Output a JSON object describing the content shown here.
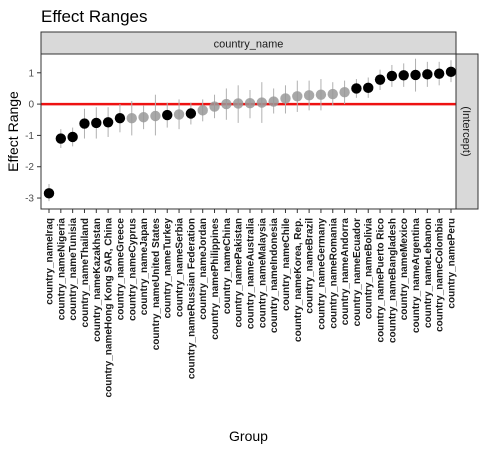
{
  "chart_data": {
    "type": "scatter",
    "title": "Effect Ranges",
    "facet_top_label": "country_name",
    "facet_right_label": "(Intercept)",
    "xlabel": "Group",
    "ylabel": "Effect Range",
    "ylim": [
      -3.35,
      1.6
    ],
    "yticks": [
      -3,
      -2,
      -1,
      0,
      1
    ],
    "reference_line": {
      "y": 0,
      "color": "#ee1111"
    },
    "grid": false,
    "colors": {
      "significant": "#000000",
      "non_significant": "#999999",
      "error_bar": "#b0b0b0",
      "strip": "#d9d9d9"
    },
    "points": [
      {
        "label": "country_nameIraq",
        "value": -2.85,
        "lower": -3.1,
        "upper": -2.55,
        "significant": true
      },
      {
        "label": "country_nameNigeria",
        "value": -1.1,
        "lower": -1.4,
        "upper": -0.8,
        "significant": true
      },
      {
        "label": "country_nameTunisia",
        "value": -1.05,
        "lower": -1.35,
        "upper": -0.75,
        "significant": true
      },
      {
        "label": "country_nameThailand",
        "value": -0.62,
        "lower": -1.1,
        "upper": -0.15,
        "significant": true
      },
      {
        "label": "country_nameKazakhstan",
        "value": -0.6,
        "lower": -1.1,
        "upper": -0.1,
        "significant": true
      },
      {
        "label": "country_nameHong Kong SAR, China",
        "value": -0.58,
        "lower": -1.05,
        "upper": -0.1,
        "significant": true
      },
      {
        "label": "country_nameGreece",
        "value": -0.45,
        "lower": -0.9,
        "upper": 0.0,
        "significant": true
      },
      {
        "label": "country_nameCyprus",
        "value": -0.45,
        "lower": -1.0,
        "upper": 0.1,
        "significant": false
      },
      {
        "label": "country_nameJapan",
        "value": -0.42,
        "lower": -0.8,
        "upper": -0.05,
        "significant": false
      },
      {
        "label": "country_nameUnited States",
        "value": -0.38,
        "lower": -1.0,
        "upper": 0.3,
        "significant": false
      },
      {
        "label": "country_nameTurkey",
        "value": -0.35,
        "lower": -0.75,
        "upper": 0.05,
        "significant": true
      },
      {
        "label": "country_nameSerbia",
        "value": -0.33,
        "lower": -0.8,
        "upper": 0.15,
        "significant": false
      },
      {
        "label": "country_nameRussian Federation",
        "value": -0.3,
        "lower": -0.65,
        "upper": 0.05,
        "significant": true
      },
      {
        "label": "country_nameJordan",
        "value": -0.2,
        "lower": -0.55,
        "upper": 0.15,
        "significant": false
      },
      {
        "label": "country_namePhilippines",
        "value": -0.08,
        "lower": -0.45,
        "upper": 0.3,
        "significant": false
      },
      {
        "label": "country_nameChina",
        "value": 0.0,
        "lower": -0.5,
        "upper": 0.5,
        "significant": false
      },
      {
        "label": "country_namePakistan",
        "value": 0.02,
        "lower": -0.6,
        "upper": 0.6,
        "significant": false
      },
      {
        "label": "country_nameAustralia",
        "value": 0.03,
        "lower": -0.45,
        "upper": 0.45,
        "significant": false
      },
      {
        "label": "country_nameMalaysia",
        "value": 0.05,
        "lower": -0.6,
        "upper": 0.7,
        "significant": false
      },
      {
        "label": "country_nameIndonesia",
        "value": 0.08,
        "lower": -0.3,
        "upper": 0.5,
        "significant": false
      },
      {
        "label": "country_nameChile",
        "value": 0.18,
        "lower": -0.3,
        "upper": 0.6,
        "significant": false
      },
      {
        "label": "country_nameKorea, Rep.",
        "value": 0.25,
        "lower": -0.25,
        "upper": 0.75,
        "significant": false
      },
      {
        "label": "country_nameBrazil",
        "value": 0.28,
        "lower": -0.2,
        "upper": 0.75,
        "significant": false
      },
      {
        "label": "country_nameGermany",
        "value": 0.3,
        "lower": -0.2,
        "upper": 0.8,
        "significant": false
      },
      {
        "label": "country_nameRomania",
        "value": 0.32,
        "lower": -0.05,
        "upper": 0.7,
        "significant": false
      },
      {
        "label": "country_nameAndorra",
        "value": 0.38,
        "lower": 0.0,
        "upper": 0.75,
        "significant": false
      },
      {
        "label": "country_nameEcuador",
        "value": 0.5,
        "lower": 0.2,
        "upper": 0.8,
        "significant": true
      },
      {
        "label": "country_nameBolivia",
        "value": 0.52,
        "lower": 0.2,
        "upper": 0.85,
        "significant": true
      },
      {
        "label": "country_namePuerto Rico",
        "value": 0.78,
        "lower": 0.45,
        "upper": 1.1,
        "significant": true
      },
      {
        "label": "country_nameBangladesh",
        "value": 0.9,
        "lower": 0.55,
        "upper": 1.25,
        "significant": true
      },
      {
        "label": "country_nameMexico",
        "value": 0.92,
        "lower": 0.55,
        "upper": 1.3,
        "significant": true
      },
      {
        "label": "country_nameArgentina",
        "value": 0.93,
        "lower": 0.4,
        "upper": 1.45,
        "significant": true
      },
      {
        "label": "country_nameLebanon",
        "value": 0.95,
        "lower": 0.55,
        "upper": 1.35,
        "significant": true
      },
      {
        "label": "country_nameColombia",
        "value": 0.97,
        "lower": 0.6,
        "upper": 1.35,
        "significant": true
      },
      {
        "label": "country_namePeru",
        "value": 1.03,
        "lower": 0.7,
        "upper": 1.4,
        "significant": true
      }
    ]
  }
}
